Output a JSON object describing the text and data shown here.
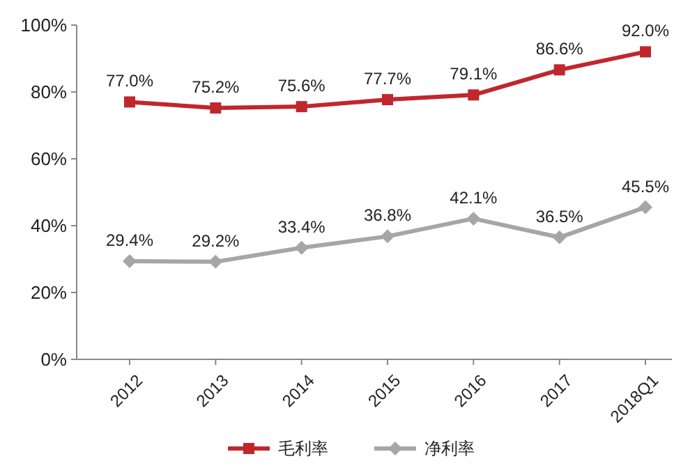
{
  "chart_data": {
    "type": "line",
    "categories": [
      "2012",
      "2013",
      "2014",
      "2015",
      "2016",
      "2017",
      "2018Q1"
    ],
    "series": [
      {
        "name": "毛利率",
        "color": "#c0272d",
        "marker": "square",
        "values": [
          77.0,
          75.2,
          75.6,
          77.7,
          79.1,
          86.6,
          92.0
        ],
        "value_labels": [
          "77.0%",
          "75.2%",
          "75.6%",
          "77.7%",
          "79.1%",
          "86.6%",
          "92.0%"
        ]
      },
      {
        "name": "净利率",
        "color": "#a6a6a6",
        "marker": "diamond",
        "values": [
          29.4,
          29.2,
          33.4,
          36.8,
          42.1,
          36.5,
          45.5
        ],
        "value_labels": [
          "29.4%",
          "29.2%",
          "33.4%",
          "36.8%",
          "42.1%",
          "36.5%",
          "45.5%"
        ]
      }
    ],
    "ylim": [
      0,
      100
    ],
    "yticks": [
      {
        "value": 0,
        "label": "0%"
      },
      {
        "value": 20,
        "label": "20%"
      },
      {
        "value": 40,
        "label": "40%"
      },
      {
        "value": 60,
        "label": "60%"
      },
      {
        "value": 80,
        "label": "80%"
      },
      {
        "value": 100,
        "label": "100%"
      }
    ],
    "grid": false,
    "legend": "bottom",
    "line_style": "solid"
  }
}
